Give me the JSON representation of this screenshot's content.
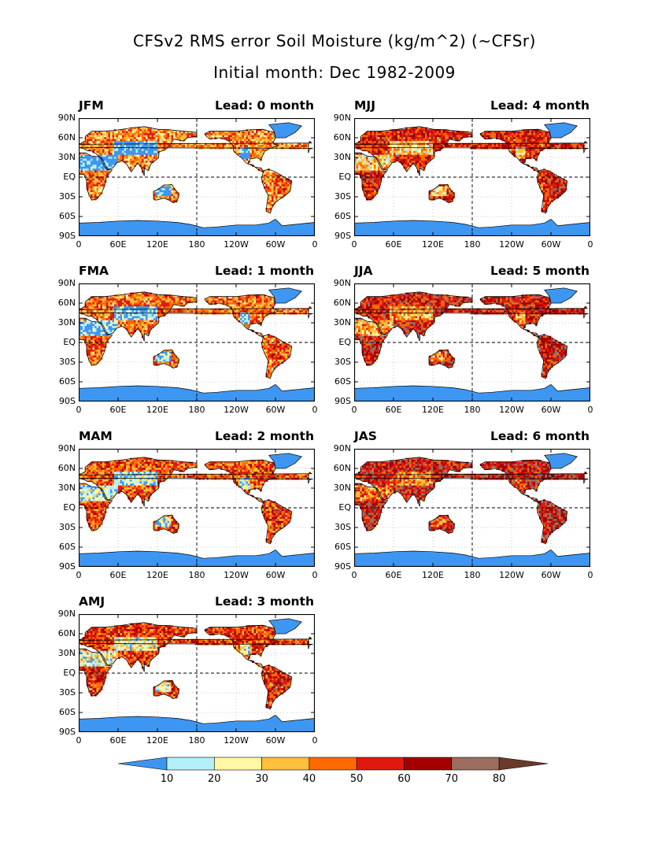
{
  "title": "CFSv2 RMS error Soil Moisture (kg/m^2) (~CFSr)",
  "subtitle": "Initial month: Dec 1982-2009",
  "y_ticks": [
    "90N",
    "60N",
    "30N",
    "EQ",
    "30S",
    "60S",
    "90S"
  ],
  "x_ticks": [
    "0",
    "60E",
    "120E",
    "180",
    "120W",
    "60W",
    "0"
  ],
  "panels": [
    {
      "season": "JFM",
      "lead": "Lead: 0 month",
      "lead_months": 0
    },
    {
      "season": "MJJ",
      "lead": "Lead: 4 month",
      "lead_months": 4
    },
    {
      "season": "FMA",
      "lead": "Lead: 1 month",
      "lead_months": 1
    },
    {
      "season": "JJA",
      "lead": "Lead: 5 month",
      "lead_months": 5
    },
    {
      "season": "MAM",
      "lead": "Lead: 2 month",
      "lead_months": 2
    },
    {
      "season": "JAS",
      "lead": "Lead: 6 month",
      "lead_months": 6
    },
    {
      "season": "AMJ",
      "lead": "Lead: 3 month",
      "lead_months": 3
    }
  ],
  "colorbar": {
    "labels": [
      "10",
      "20",
      "30",
      "40",
      "50",
      "60",
      "70",
      "80"
    ],
    "colors": [
      "#3d97f2",
      "#b4f0fa",
      "#fff7a6",
      "#fdbf3c",
      "#ff6a00",
      "#e0190f",
      "#a50000",
      "#9b6e60",
      "#6a3a2a"
    ]
  }
}
